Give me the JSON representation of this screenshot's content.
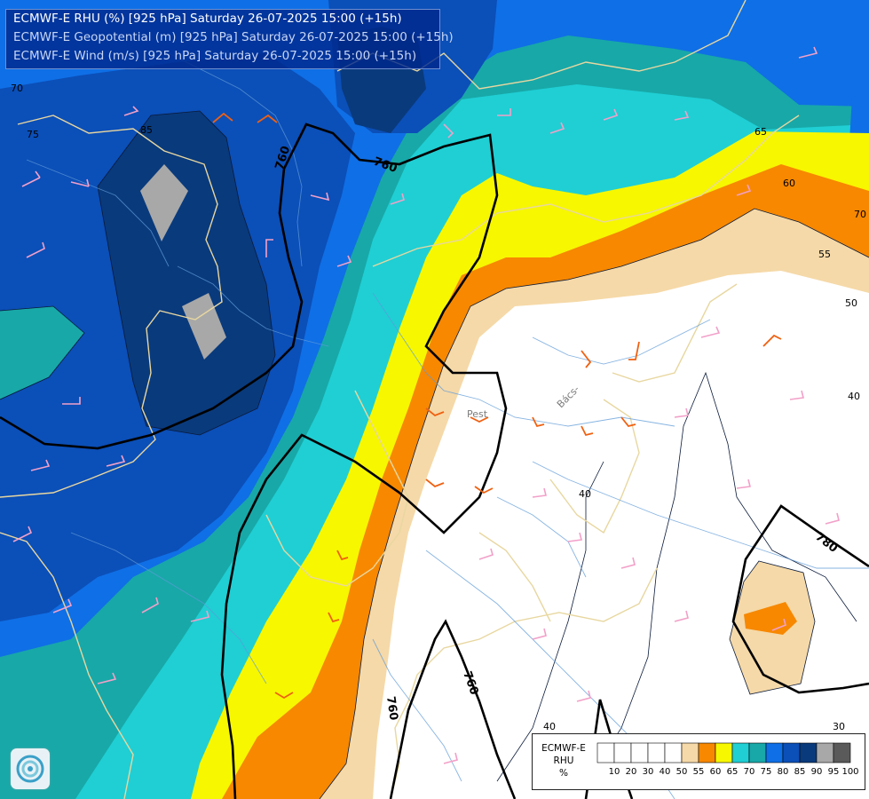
{
  "titles": [
    "ECMWF-E RHU (%) [925 hPa] Saturday 26-07-2025 15:00 (+15h)",
    "ECMWF-E Geopotential (m) [925 hPa] Saturday 26-07-2025 15:00 (+15h)",
    "ECMWF-E Wind (m/s) [925 hPa] Saturday 26-07-2025 15:00 (+15h)"
  ],
  "legend": {
    "title_lines": [
      "ECMWF-E",
      "RHU",
      "%"
    ],
    "classes": [
      {
        "value": "10",
        "color": "#ffffff"
      },
      {
        "value": "20",
        "color": "#ffffff"
      },
      {
        "value": "30",
        "color": "#ffffff"
      },
      {
        "value": "40",
        "color": "#ffffff"
      },
      {
        "value": "50",
        "color": "#ffffff"
      },
      {
        "value": "55",
        "color": "#f5d9a8"
      },
      {
        "value": "60",
        "color": "#f78800"
      },
      {
        "value": "65",
        "color": "#f7f700"
      },
      {
        "value": "70",
        "color": "#1fcfd4"
      },
      {
        "value": "75",
        "color": "#18a8a8"
      },
      {
        "value": "80",
        "color": "#0f6fe6"
      },
      {
        "value": "85",
        "color": "#0b4fb8"
      },
      {
        "value": "90",
        "color": "#093a7c"
      },
      {
        "value": "95",
        "color": "#a8a8a8"
      },
      {
        "value": "100",
        "color": "#5a5a5a"
      }
    ]
  },
  "rhu_contour_labels": [
    "70",
    "75",
    "85",
    "65",
    "60",
    "70",
    "55",
    "50",
    "40",
    "40",
    "40",
    "30"
  ],
  "geopotential_labels": [
    "760",
    "760",
    "760",
    "760",
    "780"
  ],
  "place_labels": [
    "Pest",
    "Bács-"
  ],
  "colors": {
    "title_bg": "#00288c",
    "geopotential_line": "#000000",
    "border_line": "#e8d7a0",
    "barb_pink": "#f2a0c8",
    "barb_orange": "#f06010"
  },
  "icons": [
    "ecmwf-logo-icon",
    "wind-barb-icon"
  ]
}
